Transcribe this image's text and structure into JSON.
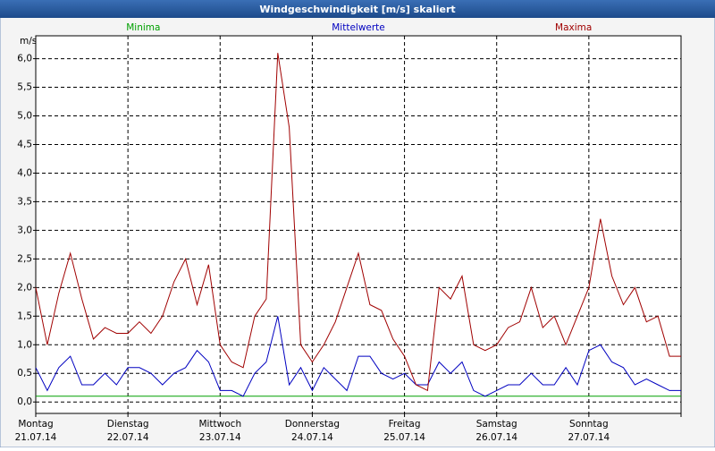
{
  "chart_data": {
    "type": "line",
    "title": "Windgeschwindigkeit [m/s] skaliert",
    "y_label": "m/s",
    "series": [
      {
        "name": "Minima",
        "color": "#00a000",
        "values": [
          0.1,
          0.1,
          0.1,
          0.1,
          0.1,
          0.1,
          0.1,
          0.1,
          0.1,
          0.1,
          0.1,
          0.1,
          0.1,
          0.1,
          0.1,
          0.1,
          0.1,
          0.1,
          0.1,
          0.1,
          0.1,
          0.1,
          0.1,
          0.1,
          0.1,
          0.1,
          0.1,
          0.1,
          0.1,
          0.1,
          0.1,
          0.1,
          0.1,
          0.1,
          0.1,
          0.1,
          0.1,
          0.1,
          0.1,
          0.1,
          0.1,
          0.1,
          0.1,
          0.1,
          0.1,
          0.1,
          0.1,
          0.1,
          0.1,
          0.1,
          0.1,
          0.1,
          0.1,
          0.1,
          0.1,
          0.1,
          0.1
        ]
      },
      {
        "name": "Mittelwerte",
        "color": "#0000c0",
        "values": [
          0.6,
          0.2,
          0.6,
          0.8,
          0.3,
          0.3,
          0.5,
          0.3,
          0.6,
          0.6,
          0.5,
          0.3,
          0.5,
          0.6,
          0.9,
          0.7,
          0.2,
          0.2,
          0.1,
          0.5,
          0.7,
          1.5,
          0.3,
          0.6,
          0.2,
          0.6,
          0.4,
          0.2,
          0.8,
          0.8,
          0.5,
          0.4,
          0.5,
          0.3,
          0.3,
          0.7,
          0.5,
          0.7,
          0.2,
          0.1,
          0.2,
          0.3,
          0.3,
          0.5,
          0.3,
          0.3,
          0.6,
          0.3,
          0.9,
          1.0,
          0.7,
          0.6,
          0.3,
          0.4,
          0.3,
          0.2,
          0.2
        ]
      },
      {
        "name": "Maxima",
        "color": "#a00000",
        "values": [
          2.0,
          1.0,
          1.9,
          2.6,
          1.8,
          1.1,
          1.3,
          1.2,
          1.2,
          1.4,
          1.2,
          1.5,
          2.1,
          2.5,
          1.7,
          2.4,
          1.0,
          0.7,
          0.6,
          1.5,
          1.8,
          6.1,
          4.8,
          1.0,
          0.7,
          1.0,
          1.4,
          2.0,
          2.6,
          1.7,
          1.6,
          1.1,
          0.8,
          0.3,
          0.2,
          2.0,
          1.8,
          2.2,
          1.0,
          0.9,
          1.0,
          1.3,
          1.4,
          2.0,
          1.3,
          1.5,
          1.0,
          1.5,
          2.0,
          3.2,
          2.2,
          1.7,
          2.0,
          1.4,
          1.5,
          0.8,
          0.8
        ]
      }
    ],
    "xlim": [
      0,
      56
    ],
    "xticks": [
      0,
      8,
      16,
      24,
      32,
      40,
      48,
      56
    ],
    "x_tick_labels": [
      {
        "day": "Montag",
        "date": "21.07.14"
      },
      {
        "day": "Dienstag",
        "date": "22.07.14"
      },
      {
        "day": "Mittwoch",
        "date": "23.07.14"
      },
      {
        "day": "Donnerstag",
        "date": "24.07.14"
      },
      {
        "day": "Freitag",
        "date": "25.07.14"
      },
      {
        "day": "Samstag",
        "date": "26.07.14"
      },
      {
        "day": "Sonntag",
        "date": "27.07.14"
      }
    ],
    "ylim": [
      -0.2,
      6.4
    ],
    "yticks": [
      {
        "value": 0,
        "label": "0,0"
      },
      {
        "value": 0.5,
        "label": "0,5"
      },
      {
        "value": 1,
        "label": "1,0"
      },
      {
        "value": 1.5,
        "label": "1,5"
      },
      {
        "value": 2,
        "label": "2,0"
      },
      {
        "value": 2.5,
        "label": "2,5"
      },
      {
        "value": 3,
        "label": "3,0"
      },
      {
        "value": 3.5,
        "label": "3,5"
      },
      {
        "value": 4,
        "label": "4,0"
      },
      {
        "value": 4.5,
        "label": "4,5"
      },
      {
        "value": 5,
        "label": "5,0"
      },
      {
        "value": 5.5,
        "label": "5,5"
      },
      {
        "value": 6,
        "label": "6,0"
      }
    ],
    "grid": true
  }
}
